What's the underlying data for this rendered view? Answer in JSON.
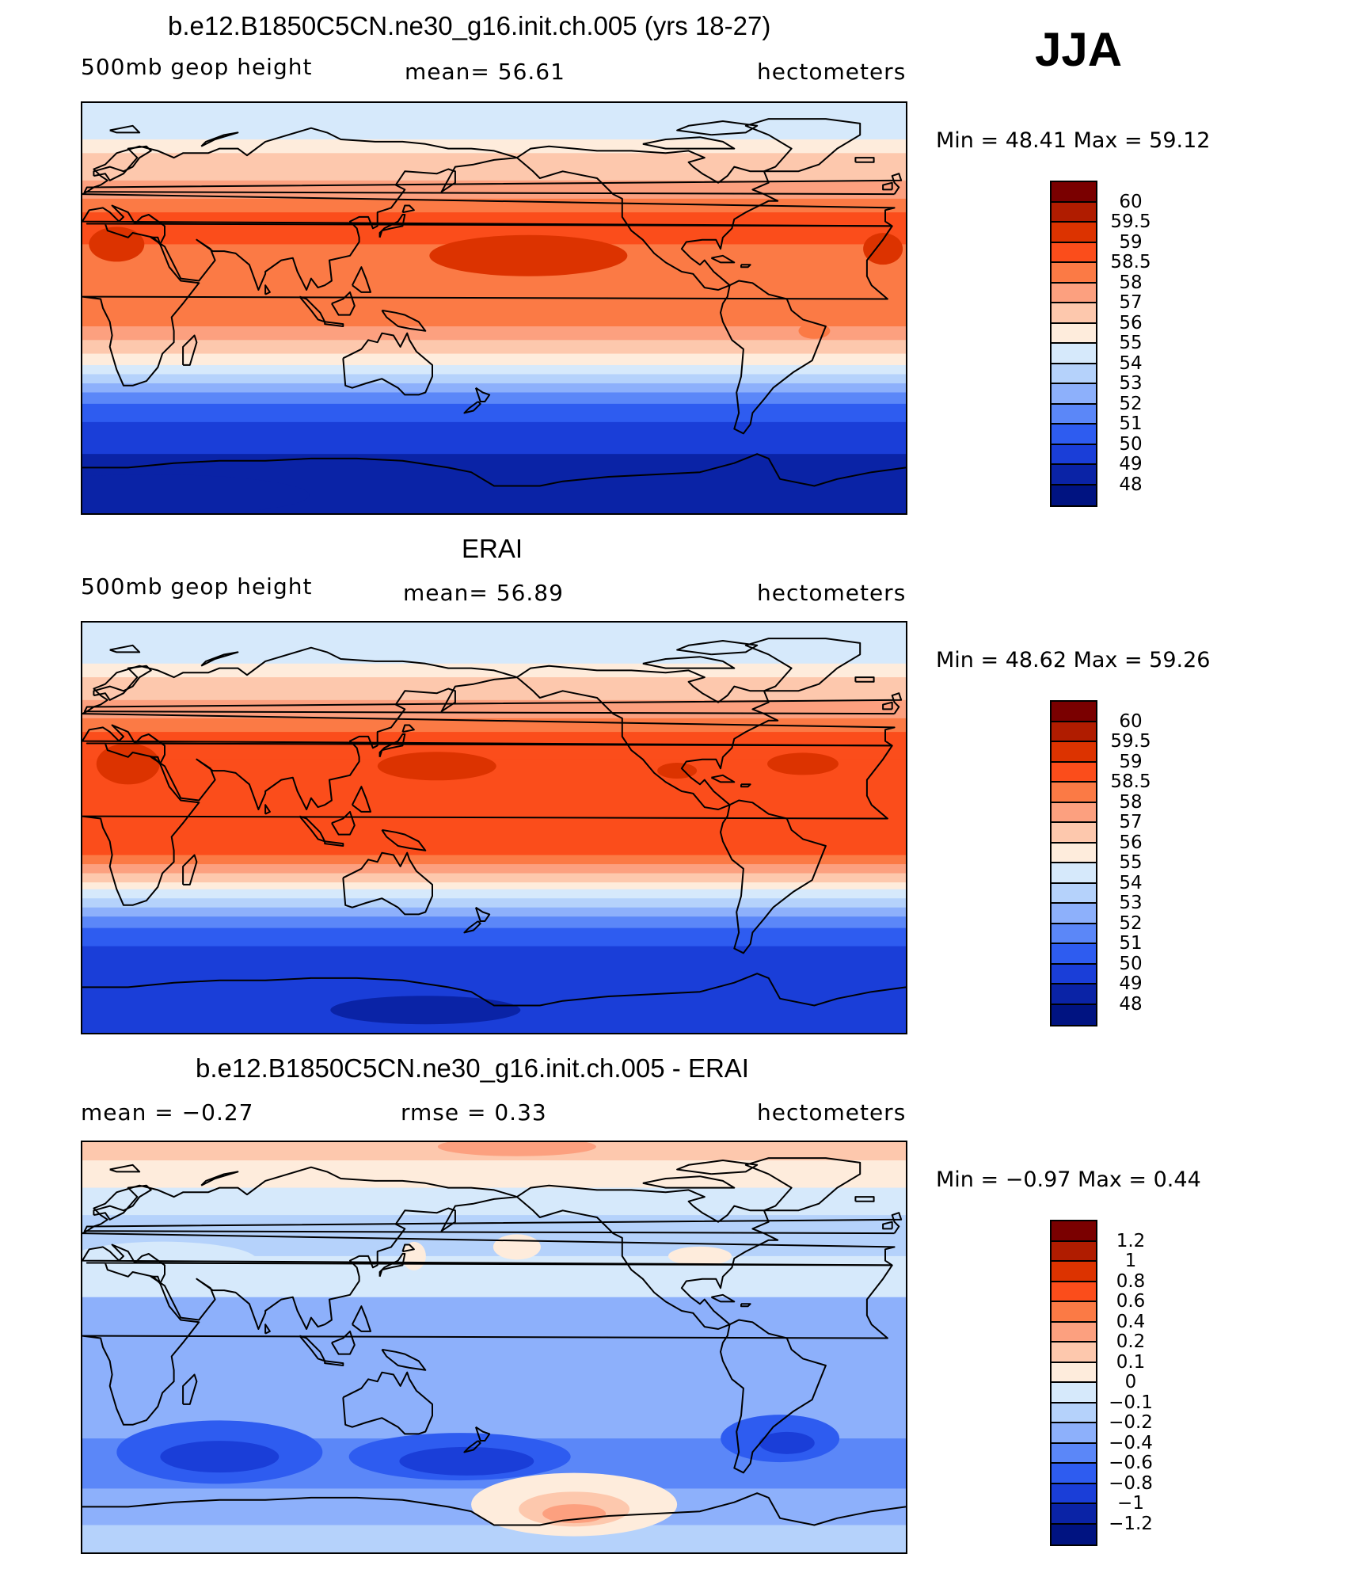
{
  "season": "JJA",
  "panels": [
    {
      "title": "b.e12.B1850C5CN.ne30_g16.init.ch.005 (yrs 18-27)",
      "left_label": "500mb  geop  height",
      "center_label": "mean=   56.61",
      "units": "hectometers",
      "stats": "Min  =    48.41  Max  =    59.12",
      "colorbar_labels": [
        "60",
        "59.5",
        "59",
        "58.5",
        "58",
        "57",
        "56",
        "55",
        "54",
        "53",
        "52",
        "51",
        "50",
        "49",
        "48"
      ],
      "field": "model"
    },
    {
      "title": "ERAI",
      "left_label": "500mb  geop  height",
      "center_label": "mean=   56.89",
      "units": "hectometers",
      "stats": "Min  =    48.62  Max  =    59.26",
      "colorbar_labels": [
        "60",
        "59.5",
        "59",
        "58.5",
        "58",
        "57",
        "56",
        "55",
        "54",
        "53",
        "52",
        "51",
        "50",
        "49",
        "48"
      ],
      "field": "obs"
    },
    {
      "title": "b.e12.B1850C5CN.ne30_g16.init.ch.005 - ERAI",
      "left_label": "mean  =    −0.27",
      "center_label": "rmse  =     0.33",
      "units": "hectometers",
      "stats": "Min  =    −0.97  Max  =     0.44",
      "colorbar_labels": [
        "1.2",
        "1",
        "0.8",
        "0.6",
        "0.4",
        "0.2",
        "0.1",
        "0",
        "−0.1",
        "−0.2",
        "−0.4",
        "−0.6",
        "−0.8",
        "−1",
        "−1.2"
      ],
      "field": "diff"
    }
  ],
  "colors": {
    "levels": [
      "#7a0000",
      "#b01c00",
      "#dc3300",
      "#fb4d1b",
      "#fb7a45",
      "#fca07f",
      "#fdc8ad",
      "#feecdc",
      "#d6e9fb",
      "#b5d2fb",
      "#8db0fb",
      "#5b87f8",
      "#2e5cf0",
      "#1a3ed8",
      "#0a23a6",
      "#001381"
    ]
  }
}
